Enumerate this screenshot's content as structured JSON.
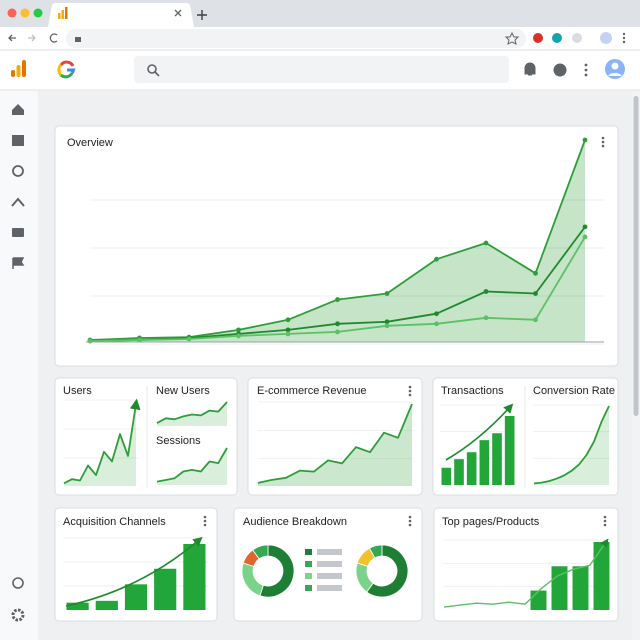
{
  "overview": {
    "title": "Overview",
    "series": [
      {
        "color": "#2e9e3a",
        "values": [
          1,
          2,
          2.4,
          6,
          11,
          21,
          24,
          41,
          49,
          34,
          100
        ]
      },
      {
        "color": "#1f8a2c",
        "values": [
          0.5,
          1,
          2,
          4,
          6,
          9,
          10,
          14,
          25,
          24,
          57
        ]
      },
      {
        "color": "#5cc164",
        "values": [
          0.5,
          1,
          1.5,
          3,
          4,
          5,
          8,
          9,
          12,
          11,
          52
        ]
      }
    ]
  },
  "users": {
    "title": "Users",
    "color": "#2e9e3a",
    "values": [
      2,
      5,
      4,
      15,
      8,
      25,
      18,
      38,
      22,
      60
    ]
  },
  "new_users": {
    "title": "New Users",
    "color": "#2e9e3a",
    "values": [
      3,
      8,
      7,
      10,
      12,
      11,
      16,
      15,
      25
    ]
  },
  "sessions": {
    "title": "Sessions",
    "color": "#2e9e3a",
    "values": [
      2,
      3,
      4,
      8,
      9,
      8,
      14,
      13,
      22
    ]
  },
  "revenue": {
    "title": "E-commerce Revenue",
    "color": "#2e9e3a",
    "values": [
      3,
      6,
      8,
      15,
      14,
      25,
      22,
      38,
      33,
      52,
      47,
      80
    ]
  },
  "transactions": {
    "title": "Transactions",
    "color": "#22a63a",
    "values": [
      20,
      30,
      38,
      52,
      60,
      80
    ]
  },
  "conversion": {
    "title": "Conversion Rate",
    "color": "#2e9e3a",
    "values": [
      2,
      3,
      5,
      8,
      12,
      18,
      26,
      38,
      55,
      80,
      100
    ]
  },
  "acquisition": {
    "title": "Acquisition Channels",
    "color": "#22a63a",
    "values": [
      8,
      10,
      28,
      45,
      72
    ]
  },
  "audience": {
    "title": "Audience Breakdown",
    "donuts": [
      {
        "values": [
          55,
          25,
          10,
          10
        ],
        "colors": [
          "#1e7e34",
          "#7bd389",
          "#e0662e",
          "#34a853"
        ]
      },
      {
        "values": [
          60,
          20,
          12,
          8
        ],
        "colors": [
          "#1e7e34",
          "#7bd389",
          "#f2c12e",
          "#34a853"
        ]
      }
    ]
  },
  "top_pages": {
    "title": "Top pages/Products",
    "color": "#22a63a",
    "bars": [
      20,
      45,
      45,
      70
    ],
    "line": [
      3,
      5,
      7,
      6,
      8,
      6,
      22,
      35,
      42,
      46,
      70
    ]
  }
}
